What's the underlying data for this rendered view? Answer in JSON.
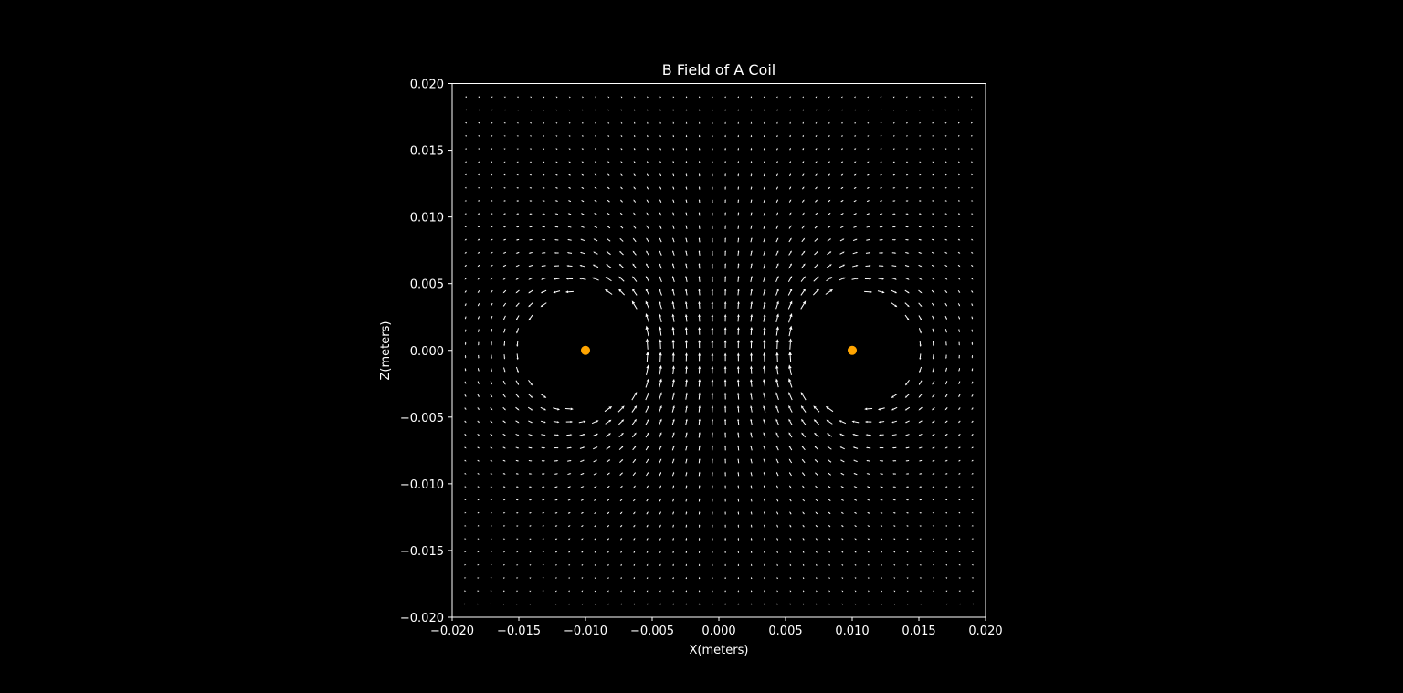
{
  "chart_data": {
    "type": "quiver",
    "title": "B Field of A Coil",
    "xlabel": "X(meters)",
    "ylabel": "Z(meters)",
    "xlim": [
      -0.02,
      0.02
    ],
    "ylim": [
      -0.02,
      0.02
    ],
    "xticks": [
      "−0.020",
      "−0.015",
      "−0.010",
      "−0.005",
      "0.000",
      "0.005",
      "0.010",
      "0.015",
      "0.020"
    ],
    "yticks": [
      "0.020",
      "0.015",
      "0.010",
      "0.005",
      "0.000",
      "−0.005",
      "−0.010",
      "−0.015",
      "−0.020"
    ],
    "grid": false,
    "field_grid": {
      "x_range": [
        -0.019,
        0.019
      ],
      "z_range": [
        -0.019,
        0.019
      ],
      "count": 40
    },
    "wires": [
      {
        "x": -0.01,
        "z": 0.0,
        "current": 1
      },
      {
        "x": 0.01,
        "z": 0.0,
        "current": -1
      }
    ],
    "colors": {
      "background": "#000000",
      "foreground": "#ffffff",
      "arrow": "#ffffff",
      "wire": "#ffa500"
    }
  }
}
